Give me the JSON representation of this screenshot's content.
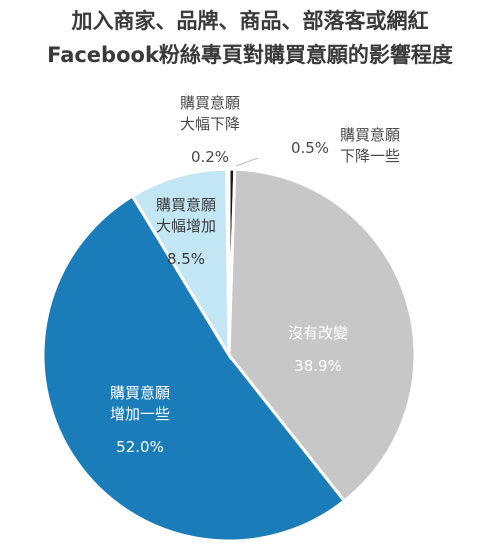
{
  "title": {
    "line1": "加入商家、品牌、商品、部落客或網紅",
    "line2": "Facebook粉絲專頁對購買意願的影響程度"
  },
  "chart_data": {
    "type": "pie",
    "title": "加入商家、品牌、商品、部落客或網紅Facebook粉絲專頁對購買意願的影響程度",
    "slices": [
      {
        "label_lines": [
          "購買意願",
          "下降一些"
        ],
        "value_label": "0.5%",
        "value": 0.5,
        "color": "#1a1a1a"
      },
      {
        "label_lines": [
          "沒有改變"
        ],
        "value_label": "38.9%",
        "value": 38.9,
        "color": "#c7c7c7"
      },
      {
        "label_lines": [
          "購買意願",
          "增加一些"
        ],
        "value_label": "52.0%",
        "value": 52.0,
        "color": "#1a7cb8"
      },
      {
        "label_lines": [
          "購買意願",
          "大幅增加"
        ],
        "value_label": "8.5%",
        "value": 8.5,
        "color": "#c3e6f5"
      },
      {
        "label_lines": [
          "購買意願",
          "大幅下降"
        ],
        "value_label": "0.2%",
        "value": 0.2,
        "color": "#555555"
      }
    ]
  }
}
